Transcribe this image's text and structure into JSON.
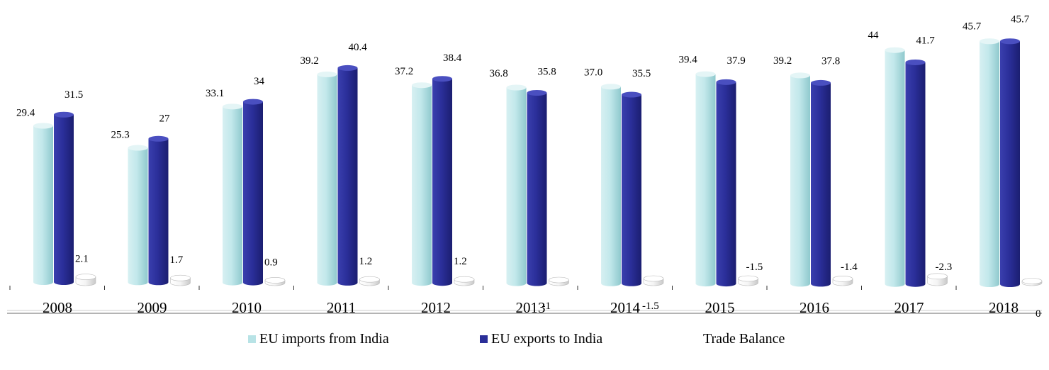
{
  "chart_data": {
    "type": "bar",
    "categories": [
      "2008",
      "2009",
      "2010",
      "2011",
      "2012",
      "2013",
      "2014",
      "2015",
      "2016",
      "2017",
      "2018"
    ],
    "series": [
      {
        "name": "EU imports from India",
        "color": "#b8e3e6",
        "values": [
          29.4,
          25.3,
          33.1,
          39.2,
          37.2,
          36.8,
          37.0,
          39.4,
          39.2,
          44,
          45.7
        ],
        "labels": [
          "29.4",
          "25.3",
          "33.1",
          "39.2",
          "37.2",
          "36.8",
          "37.0",
          "39.4",
          "39.2",
          "44",
          "45.7"
        ]
      },
      {
        "name": "EU exports to India",
        "color": "#2a2e98",
        "values": [
          31.5,
          27,
          34,
          40.4,
          38.4,
          35.8,
          35.5,
          37.9,
          37.8,
          41.7,
          45.7
        ],
        "labels": [
          "31.5",
          "27",
          "34",
          "40.4",
          "38.4",
          "35.8",
          "35.5",
          "37.9",
          "37.8",
          "41.7",
          "45.7"
        ]
      },
      {
        "name": "Trade Balance",
        "color": "#f2f2f2",
        "values": [
          2.1,
          1.7,
          0.9,
          1.2,
          1.2,
          -1,
          -1.5,
          -1.5,
          -1.4,
          -2.3,
          0
        ],
        "labels": [
          "2.1",
          "1.7",
          "0.9",
          "1.2",
          "1.2",
          "-1",
          "-1.5",
          "-1.5",
          "-1.4",
          "-2.3",
          "0"
        ]
      }
    ],
    "legend_position": "bottom",
    "grid": false,
    "three_d": true
  }
}
